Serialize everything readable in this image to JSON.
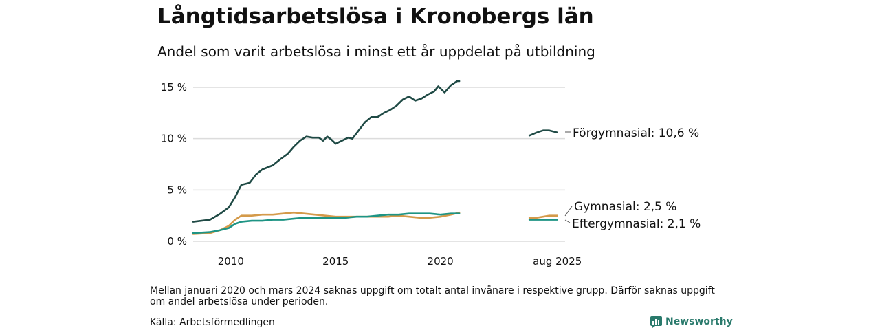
{
  "title": "Långtidsarbetslösa i Kronobergs län",
  "subtitle": "Andel som varit arbetslösa i minst ett år uppdelat på utbildning",
  "note": "Mellan januari 2020 och mars 2024 saknas uppgift om totalt antal invånare i respektive grupp. Därför saknas uppgift om andel arbetslösa under perioden.",
  "source": "Källa: Arbetsförmedlingen",
  "brand": {
    "name": "Newsworthy",
    "icon": "newsworthy-logo-icon",
    "color": "#2a7a6c"
  },
  "chart_data": {
    "type": "line",
    "x_unit": "year",
    "ylim": [
      0,
      16
    ],
    "y_ticks": [
      0,
      5,
      10,
      15
    ],
    "y_tick_labels": [
      "0 %",
      "5 %",
      "10 %",
      "15 %"
    ],
    "x_tick_values": [
      2010,
      2015,
      2020,
      2025.58
    ],
    "x_tick_labels": [
      "2010",
      "2015",
      "2020",
      "aug 2025"
    ],
    "grid": "horizontal",
    "gap": [
      "2021-01",
      "2024-04"
    ],
    "series": [
      {
        "name": "Förgymnasial",
        "end_label": "Förgymnasial: 10,6 %",
        "color": "#1f4a45",
        "segments": [
          [
            [
              2008.2,
              1.9
            ],
            [
              2009.0,
              2.1
            ],
            [
              2009.5,
              2.7
            ],
            [
              2009.9,
              3.3
            ],
            [
              2010.2,
              4.3
            ],
            [
              2010.5,
              5.5
            ],
            [
              2010.9,
              5.7
            ],
            [
              2011.2,
              6.5
            ],
            [
              2011.5,
              7.0
            ],
            [
              2012.0,
              7.4
            ],
            [
              2012.3,
              7.9
            ],
            [
              2012.7,
              8.5
            ],
            [
              2013.0,
              9.2
            ],
            [
              2013.3,
              9.8
            ],
            [
              2013.6,
              10.2
            ],
            [
              2013.9,
              10.1
            ],
            [
              2014.2,
              10.1
            ],
            [
              2014.4,
              9.8
            ],
            [
              2014.6,
              10.2
            ],
            [
              2014.8,
              9.9
            ],
            [
              2015.0,
              9.5
            ],
            [
              2015.3,
              9.8
            ],
            [
              2015.6,
              10.1
            ],
            [
              2015.8,
              10.0
            ],
            [
              2016.1,
              10.8
            ],
            [
              2016.4,
              11.6
            ],
            [
              2016.7,
              12.1
            ],
            [
              2017.0,
              12.1
            ],
            [
              2017.3,
              12.5
            ],
            [
              2017.6,
              12.8
            ],
            [
              2017.9,
              13.2
            ],
            [
              2018.2,
              13.8
            ],
            [
              2018.5,
              14.1
            ],
            [
              2018.8,
              13.7
            ],
            [
              2019.1,
              13.9
            ],
            [
              2019.4,
              14.3
            ],
            [
              2019.7,
              14.6
            ],
            [
              2019.9,
              15.1
            ],
            [
              2020.2,
              14.5
            ],
            [
              2020.5,
              15.2
            ],
            [
              2020.8,
              15.6
            ],
            [
              2020.9,
              15.6
            ]
          ],
          [
            [
              2024.25,
              10.3
            ],
            [
              2024.6,
              10.6
            ],
            [
              2024.9,
              10.8
            ],
            [
              2025.2,
              10.8
            ],
            [
              2025.58,
              10.6
            ]
          ]
        ]
      },
      {
        "name": "Gymnasial",
        "end_label": "Gymnasial:  2,5 %",
        "color": "#d49a4a",
        "segments": [
          [
            [
              2008.2,
              0.7
            ],
            [
              2009.0,
              0.8
            ],
            [
              2009.5,
              1.1
            ],
            [
              2009.9,
              1.5
            ],
            [
              2010.2,
              2.1
            ],
            [
              2010.5,
              2.5
            ],
            [
              2011.0,
              2.5
            ],
            [
              2011.5,
              2.6
            ],
            [
              2012.0,
              2.6
            ],
            [
              2012.5,
              2.7
            ],
            [
              2013.0,
              2.8
            ],
            [
              2013.5,
              2.7
            ],
            [
              2014.0,
              2.6
            ],
            [
              2014.5,
              2.5
            ],
            [
              2015.0,
              2.4
            ],
            [
              2015.5,
              2.4
            ],
            [
              2016.0,
              2.4
            ],
            [
              2016.5,
              2.4
            ],
            [
              2017.0,
              2.4
            ],
            [
              2017.5,
              2.4
            ],
            [
              2018.0,
              2.5
            ],
            [
              2018.5,
              2.4
            ],
            [
              2019.0,
              2.3
            ],
            [
              2019.5,
              2.3
            ],
            [
              2020.0,
              2.4
            ],
            [
              2020.5,
              2.6
            ],
            [
              2020.9,
              2.8
            ]
          ],
          [
            [
              2024.25,
              2.3
            ],
            [
              2024.6,
              2.3
            ],
            [
              2024.9,
              2.4
            ],
            [
              2025.2,
              2.5
            ],
            [
              2025.58,
              2.5
            ]
          ]
        ]
      },
      {
        "name": "Eftergymnasial",
        "end_label": "Eftergymnasial:  2,1 %",
        "color": "#1e9484",
        "segments": [
          [
            [
              2008.2,
              0.8
            ],
            [
              2009.0,
              0.9
            ],
            [
              2009.5,
              1.1
            ],
            [
              2009.9,
              1.3
            ],
            [
              2010.2,
              1.7
            ],
            [
              2010.5,
              1.9
            ],
            [
              2011.0,
              2.0
            ],
            [
              2011.5,
              2.0
            ],
            [
              2012.0,
              2.1
            ],
            [
              2012.5,
              2.1
            ],
            [
              2013.0,
              2.2
            ],
            [
              2013.5,
              2.3
            ],
            [
              2014.0,
              2.3
            ],
            [
              2014.5,
              2.3
            ],
            [
              2015.0,
              2.3
            ],
            [
              2015.5,
              2.3
            ],
            [
              2016.0,
              2.4
            ],
            [
              2016.5,
              2.4
            ],
            [
              2017.0,
              2.5
            ],
            [
              2017.5,
              2.6
            ],
            [
              2018.0,
              2.6
            ],
            [
              2018.5,
              2.7
            ],
            [
              2019.0,
              2.7
            ],
            [
              2019.5,
              2.7
            ],
            [
              2020.0,
              2.6
            ],
            [
              2020.5,
              2.7
            ],
            [
              2020.9,
              2.7
            ]
          ],
          [
            [
              2024.25,
              2.1
            ],
            [
              2024.6,
              2.1
            ],
            [
              2024.9,
              2.1
            ],
            [
              2025.2,
              2.1
            ],
            [
              2025.58,
              2.1
            ]
          ]
        ]
      }
    ]
  }
}
